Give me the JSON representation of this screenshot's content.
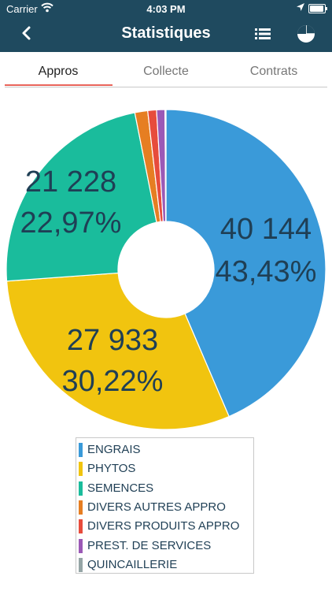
{
  "status": {
    "carrier": "Carrier",
    "time": "4:03 PM"
  },
  "header": {
    "title": "Statistiques",
    "back_icon": "chevron-left-icon",
    "list_icon": "list-icon",
    "pie_icon": "pie-chart-icon"
  },
  "tabs": [
    {
      "label": "Appros",
      "active": true
    },
    {
      "label": "Collecte",
      "active": false
    },
    {
      "label": "Contrats",
      "active": false
    }
  ],
  "colors": {
    "header_bg": "#1f4a5f",
    "tab_indicator": "#e8645a",
    "label_text": "#1f3f55"
  },
  "chart_data": {
    "type": "pie",
    "donut": true,
    "slices": [
      {
        "name": "ENGRAIS",
        "value": 40144,
        "percent": "43,43%",
        "value_label": "40 144",
        "color": "#3a9ad9"
      },
      {
        "name": "PHYTOS",
        "value": 27933,
        "percent": "30,22%",
        "value_label": "27 933",
        "color": "#f1c40f"
      },
      {
        "name": "SEMENCES",
        "value": 21228,
        "percent": "22,97%",
        "value_label": "21 228",
        "color": "#1abc9c"
      },
      {
        "name": "DIVERS AUTRES APPRO",
        "value": 1200,
        "percent": "",
        "value_label": "",
        "color": "#e67e22"
      },
      {
        "name": "DIVERS PRODUITS APPRO",
        "value": 820,
        "percent": "",
        "value_label": "",
        "color": "#e74c3c"
      },
      {
        "name": "PREST. DE SERVICES",
        "value": 780,
        "percent": "",
        "value_label": "",
        "color": "#9b59b6"
      },
      {
        "name": "QUINCAILLERIE",
        "value": 90,
        "percent": "",
        "value_label": "",
        "color": "#95a5a6"
      }
    ]
  },
  "legend": {
    "placement": "bottom-center"
  }
}
